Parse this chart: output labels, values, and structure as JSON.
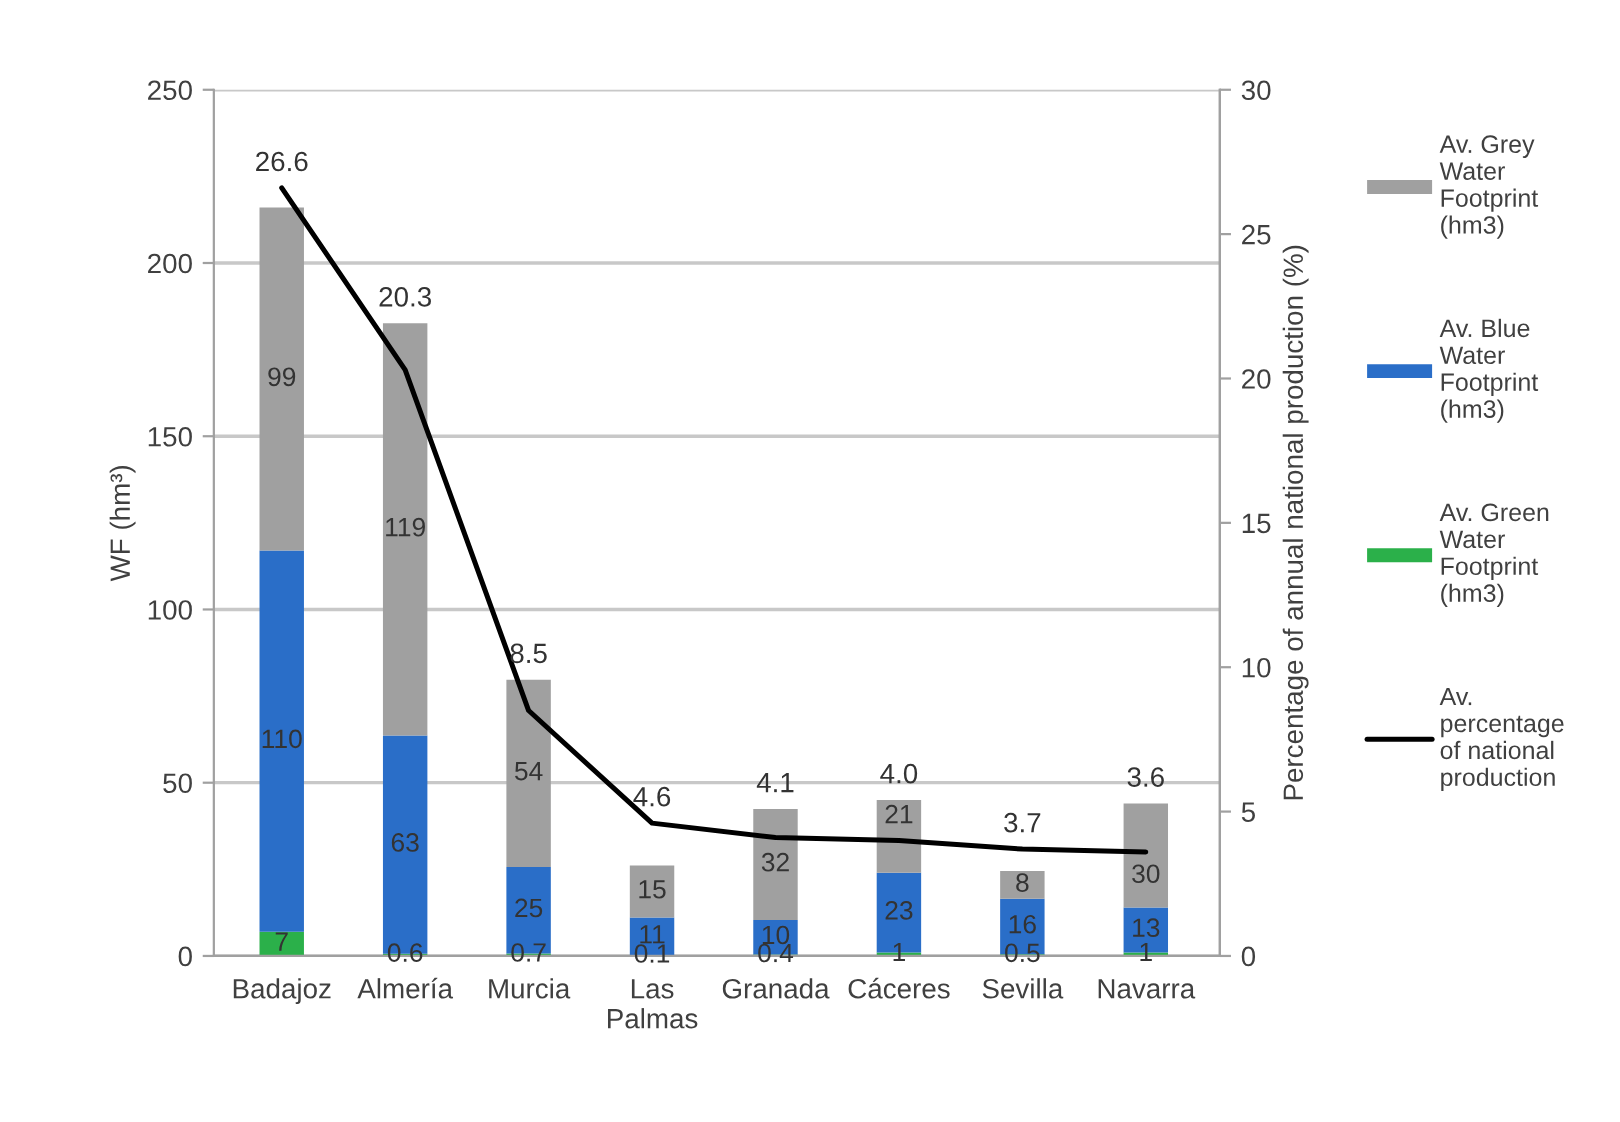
{
  "chart_data": {
    "type": "bar",
    "stacked": true,
    "categories": [
      "Badajoz",
      "Almería",
      "Murcia",
      "Las Palmas",
      "Granada",
      "Cáceres",
      "Sevilla",
      "Navarra"
    ],
    "series": [
      {
        "name": "Av. Green Water Footprint (hm3)",
        "color": "#2bb04a",
        "values": [
          7,
          0.6,
          0.7,
          0.1,
          0.4,
          1,
          0.5,
          1
        ]
      },
      {
        "name": "Av. Blue Water Footprint (hm3)",
        "color": "#2a6ec8",
        "values": [
          110,
          63,
          25,
          11,
          10,
          23,
          16,
          13
        ]
      },
      {
        "name": "Av. Grey Water Footprint (hm3)",
        "color": "#a0a0a0",
        "values": [
          99,
          119,
          54,
          15,
          32,
          21,
          8,
          30
        ]
      },
      {
        "name": "Av. percentage of national production",
        "type": "line",
        "axis": "y2",
        "color": "#000000",
        "values": [
          26.6,
          20.3,
          8.5,
          4.6,
          4.1,
          4.0,
          3.7,
          3.6
        ],
        "value_labels": [
          "26.6",
          "20.3",
          "8.5",
          "4.6",
          "4.1",
          "4.0",
          "3.7",
          "3.6"
        ]
      }
    ],
    "ylabel": "WF (hm³)",
    "y2label": "Percentage of annual national production (%)",
    "ylim": [
      0,
      250
    ],
    "yticks": [
      0,
      50,
      100,
      150,
      200,
      250
    ],
    "y2lim": [
      0,
      30
    ],
    "y2ticks": [
      0,
      5,
      10,
      15,
      20,
      25,
      30
    ],
    "grid": "y",
    "legend": "right",
    "data_labels": true
  }
}
